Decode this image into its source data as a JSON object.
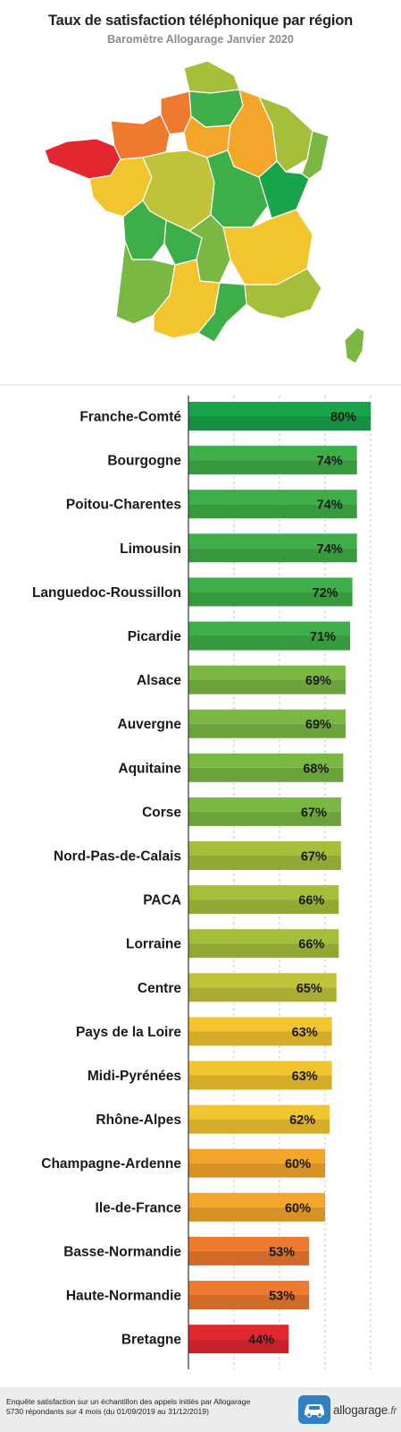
{
  "header": {
    "title": "Taux de satisfaction téléphonique par région",
    "subtitle": "Baromètre Allogarage Janvier 2020"
  },
  "colors": {
    "dark_green": "#19a34a",
    "green": "#3eaf48",
    "mid_green": "#7bb843",
    "yellow_green": "#a6bf3b",
    "olive": "#bfc33a",
    "yellow": "#f2c42e",
    "orange_yellow": "#f4a62a",
    "orange": "#ee7a2f",
    "red": "#e2272f"
  },
  "chart_data": {
    "type": "bar",
    "orientation": "horizontal",
    "title": "Taux de satisfaction téléphonique par région",
    "subtitle": "Baromètre Allogarage Janvier 2020",
    "xlabel": "",
    "ylabel": "",
    "xlim": [
      0,
      80
    ],
    "grid": true,
    "unit": "%",
    "categories": [
      "Franche-Comté",
      "Bourgogne",
      "Poitou-Charentes",
      "Limousin",
      "Languedoc-Roussillon",
      "Picardie",
      "Alsace",
      "Auvergne",
      "Aquitaine",
      "Corse",
      "Nord-Pas-de-Calais",
      "PACA",
      "Lorraine",
      "Centre",
      "Pays de la Loire",
      "Midi-Pyrénées",
      "Rhône-Alpes",
      "Champagne-Ardenne",
      "Ile-de-France",
      "Basse-Normandie",
      "Haute-Normandie",
      "Bretagne"
    ],
    "values": [
      80,
      74,
      74,
      74,
      72,
      71,
      69,
      69,
      68,
      67,
      67,
      66,
      66,
      65,
      63,
      63,
      62,
      60,
      60,
      53,
      53,
      44
    ],
    "labels": [
      "80%",
      "74%",
      "74%",
      "74%",
      "72%",
      "71%",
      "69%",
      "69%",
      "68%",
      "67%",
      "67%",
      "66%",
      "66%",
      "65%",
      "63%",
      "63%",
      "62%",
      "60%",
      "60%",
      "53%",
      "53%",
      "44%"
    ],
    "colors": [
      "#19a34a",
      "#3eaf48",
      "#3eaf48",
      "#3eaf48",
      "#3eaf48",
      "#3eaf48",
      "#7bb843",
      "#7bb843",
      "#7bb843",
      "#7bb843",
      "#a6bf3b",
      "#a6bf3b",
      "#a6bf3b",
      "#bfc33a",
      "#f2c42e",
      "#f2c42e",
      "#f2c42e",
      "#f4a62a",
      "#f4a62a",
      "#ee7a2f",
      "#ee7a2f",
      "#e2272f"
    ]
  },
  "footer": {
    "note": "Enquête satisfaction sur un échantillon des appels initiés par Allogarage\n5730 répondants sur 4 mois (du 01/09/2019 au 31/12/2019)",
    "logo_name": "allogarage",
    "logo_tld": ".fr",
    "logo_icon": "car-icon"
  }
}
